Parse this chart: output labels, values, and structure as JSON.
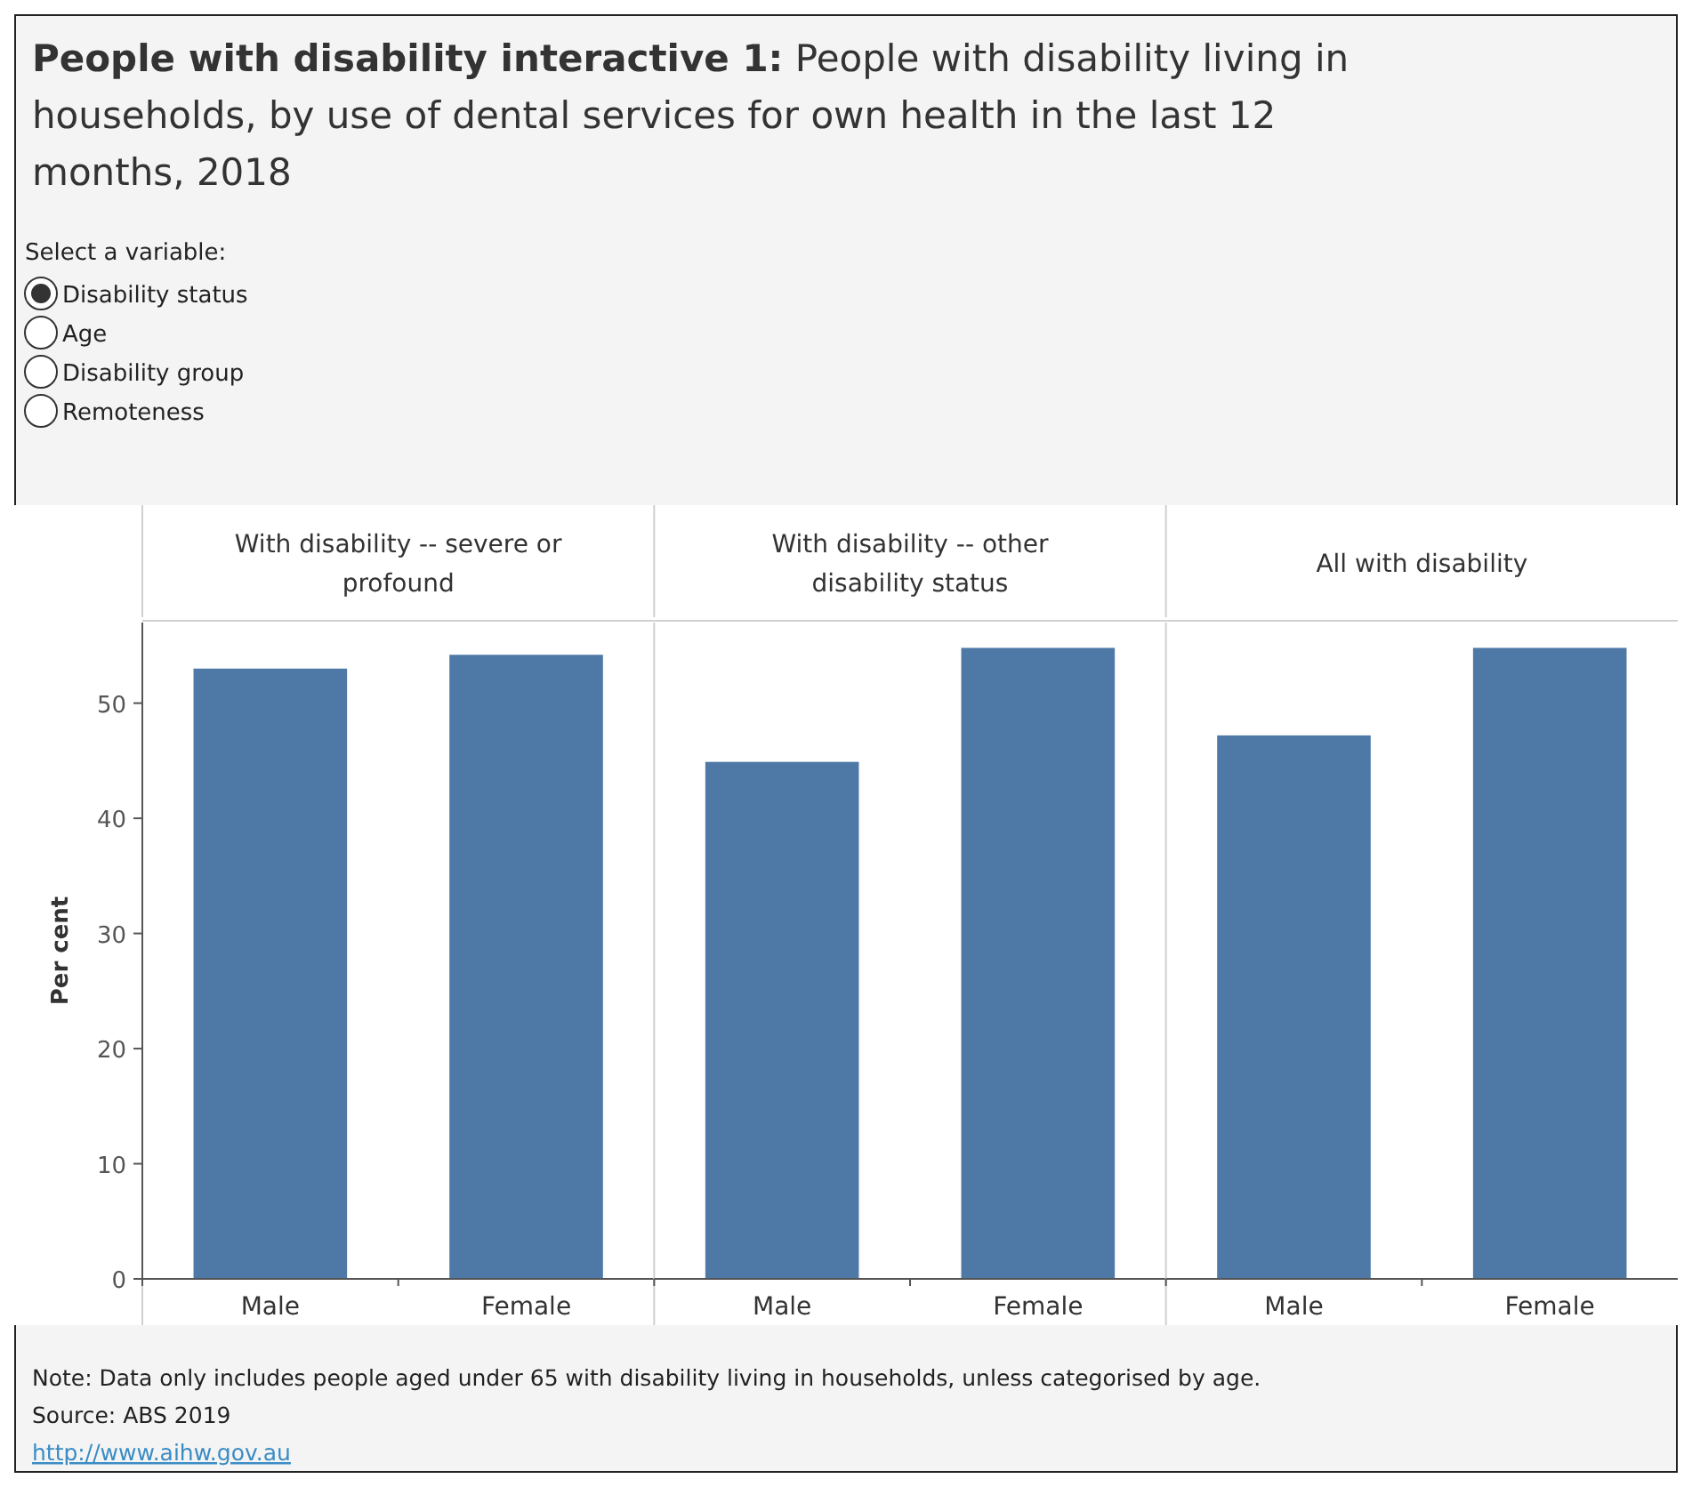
{
  "chart_data": [
    {
      "type": "bar",
      "title": "With disability -- severe or profound",
      "annotations": [
        "People with disability interactive 1:",
        "People with disability living in households, by use of dental services for own health in the last 12 months, 2018",
        "Select a variable:",
        "Disability status",
        "Age",
        "Disability group",
        "Remoteness",
        "Note: Data only includes people aged under 65 with disability living in households, unless categorised by age.",
        "Source: ABS 2019",
        "http://www.aihw.gov.au"
      ],
      "ylabel": "Per cent",
      "categories": [
        "Male",
        "Female"
      ],
      "values": [
        53.0,
        54.2
      ],
      "color": "#4e79a7",
      "ylim": [
        0,
        57
      ],
      "yticks": [
        0,
        10,
        20,
        30,
        40,
        50
      ],
      "grid": false
    },
    {
      "type": "bar",
      "title": "With disability -- other disability status",
      "categories": [
        "Male",
        "Female"
      ],
      "values": [
        44.9,
        54.8
      ],
      "color": "#4e79a7",
      "ylim": [
        0,
        57
      ],
      "tick_labels": "x",
      "grid": false
    },
    {
      "type": "bar",
      "title": "All with disability",
      "categories": [
        "Male",
        "Female"
      ],
      "values": [
        47.2,
        54.8
      ],
      "color": "#4e79a7",
      "ylim": [
        0,
        57
      ],
      "tick_labels": "x",
      "grid": false
    }
  ]
}
